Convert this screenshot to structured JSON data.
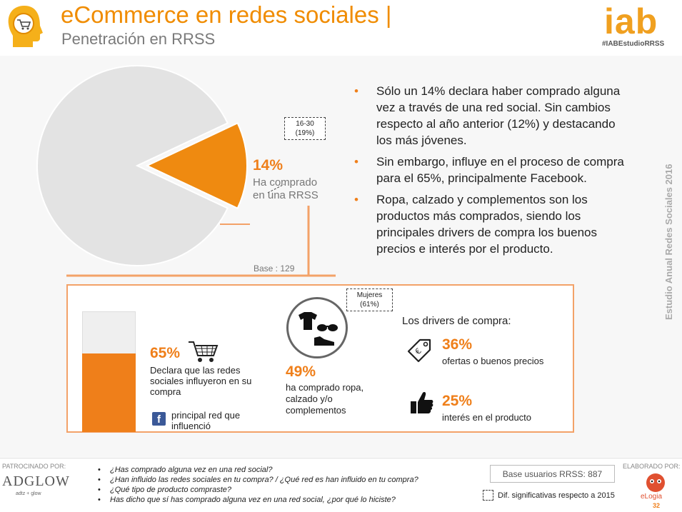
{
  "header": {
    "title": "eCommerce en redes sociales |",
    "subtitle": "Penetración en RRSS",
    "brand_logo": "iab",
    "hashtag": "#IABEstudioRRSS"
  },
  "chart_data": [
    {
      "type": "pie",
      "slices": [
        {
          "label": "Ha comprado en una RRSS",
          "value": 14,
          "color": "#ef8a10",
          "exploded": true
        },
        {
          "label": "",
          "value": 86,
          "color": "#e3e3e3"
        }
      ],
      "callout_value": "14%",
      "callout_label": "Ha comprado en una RRSS",
      "annotation": "16-30\n(19%)",
      "base": "Base : 129"
    },
    {
      "type": "bar",
      "categories": [
        ""
      ],
      "values": [
        65
      ],
      "ylim": [
        0,
        100
      ],
      "color": "#ef7f1a",
      "background": "#efefef"
    }
  ],
  "bullets": [
    "Sólo un 14% declara haber comprado alguna vez a través de una red social. Sin cambios respecto al año anterior (12%) y destacando los más jóvenes.",
    "Sin embargo, influye en el proceso de compra para el 65%, principalmente Facebook.",
    "Ropa, calzado y complementos son los productos más comprados, siendo los principales drivers de compra los buenos precios e interés por el producto."
  ],
  "side_text": "Estudio Anual Redes Sociales 2016",
  "influence": {
    "value": "65%",
    "text": "Declara que las redes sociales influyeron en su compra",
    "network_text": "principal red que influenció",
    "network_icon": "facebook-icon",
    "icon": "shopping-cart-icon"
  },
  "clothing": {
    "value": "49%",
    "text": "ha comprado ropa, calzado y/o complementos",
    "note": "Mujeres\n(61%)",
    "icon": "clothing-icon"
  },
  "drivers": {
    "title": "Los drivers de compra:",
    "items": [
      {
        "value": "36%",
        "label": "ofertas o buenos precios",
        "icon": "price-tag-icon"
      },
      {
        "value": "25%",
        "label": "interés en el producto",
        "icon": "thumbs-up-icon"
      }
    ]
  },
  "footer": {
    "sponsored_label": "PATROCINADO POR:",
    "sponsor_name": "ADGLOW",
    "sponsor_sub": "adtz + glow",
    "questions": [
      "¿Has comprado alguna vez en una red social?",
      "¿Han influido las redes sociales en tu compra? / ¿Qué red es han influido en tu compra?",
      "¿Qué tipo de producto compraste?",
      "Has dicho que sí has comprado alguna vez en una red social, ¿por qué lo hiciste?"
    ],
    "base_users": "Base usuarios RRSS: 887",
    "dif_label": "Dif. significativas respecto a 2015",
    "made_by_label": "ELABORADO POR:",
    "made_by_name": "eLogia",
    "page_number": "32"
  },
  "colors": {
    "accent": "#ef7f1a",
    "pie_rest": "#e3e3e3",
    "facebook": "#3b5998"
  }
}
